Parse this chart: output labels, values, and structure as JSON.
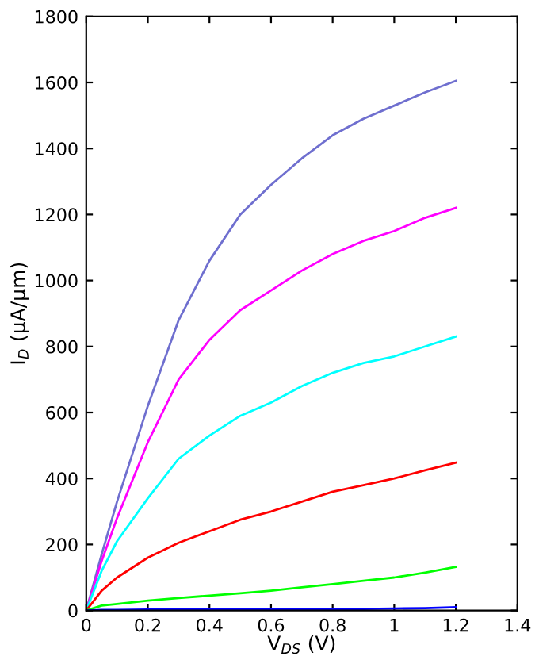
{
  "chart_data": {
    "type": "line",
    "xlabel": "V$_{DS}$ (V)",
    "ylabel": "I$_{D}$ (μA/μm)",
    "x": [
      0,
      0.05,
      0.1,
      0.2,
      0.3,
      0.4,
      0.5,
      0.6,
      0.7,
      0.8,
      0.9,
      1.0,
      1.1,
      1.2
    ],
    "xlim": [
      0,
      1.4
    ],
    "xticks": [
      0,
      0.2,
      0.4,
      0.6,
      0.8,
      1,
      1.2,
      1.4
    ],
    "ylim": [
      0,
      1800
    ],
    "yticks": [
      0,
      200,
      400,
      600,
      800,
      1000,
      1200,
      1400,
      1600,
      1800
    ],
    "grid": false,
    "marker": "none",
    "line_style": "solid",
    "series": [
      {
        "color": "#6f6fcf",
        "values": [
          0,
          170,
          330,
          620,
          880,
          1060,
          1200,
          1290,
          1370,
          1440,
          1490,
          1530,
          1570,
          1605
        ]
      },
      {
        "color": "#ff00ff",
        "values": [
          0,
          150,
          280,
          510,
          700,
          820,
          910,
          970,
          1030,
          1080,
          1120,
          1150,
          1190,
          1220
        ]
      },
      {
        "color": "#00ffff",
        "values": [
          0,
          120,
          210,
          340,
          460,
          530,
          590,
          630,
          680,
          720,
          750,
          770,
          800,
          830
        ]
      },
      {
        "color": "#ff0000",
        "values": [
          0,
          60,
          100,
          160,
          205,
          240,
          275,
          300,
          330,
          360,
          380,
          400,
          425,
          448
        ]
      },
      {
        "color": "#00ff00",
        "values": [
          0,
          15,
          20,
          30,
          38,
          45,
          52,
          60,
          70,
          80,
          90,
          100,
          115,
          132
        ]
      },
      {
        "color": "#0000ff",
        "values": [
          0,
          2,
          2,
          3,
          3,
          3,
          3,
          4,
          4,
          5,
          5,
          6,
          7,
          10
        ]
      }
    ]
  }
}
